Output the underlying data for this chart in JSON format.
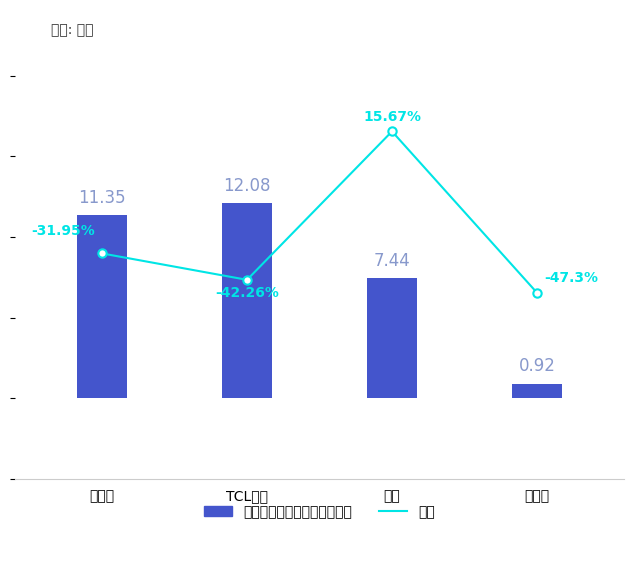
{
  "categories": [
    "京东方",
    "TCL科技",
    "天马",
    "维信诺"
  ],
  "bar_values": [
    11.35,
    12.08,
    7.44,
    0.92
  ],
  "bar_labels": [
    "11.35",
    "12.08",
    "7.44",
    "0.92"
  ],
  "yoy_values": [
    -31.95,
    -42.26,
    15.67,
    -47.3
  ],
  "yoy_labels": [
    "-31.95%",
    "-42.26%",
    "15.67%",
    "-47.3%"
  ],
  "bar_color": "#4455cc",
  "line_color": "#00e5e5",
  "bar_label_color": "#8899cc",
  "yoy_label_color": "#00e5e5",
  "background_color": "#ffffff",
  "unit_label": "单位: 亿元",
  "legend_bar_label": "归属于上市公司股东的净利润",
  "legend_line_label": "同比",
  "fig_width": 6.39,
  "fig_height": 5.68,
  "dpi": 100
}
